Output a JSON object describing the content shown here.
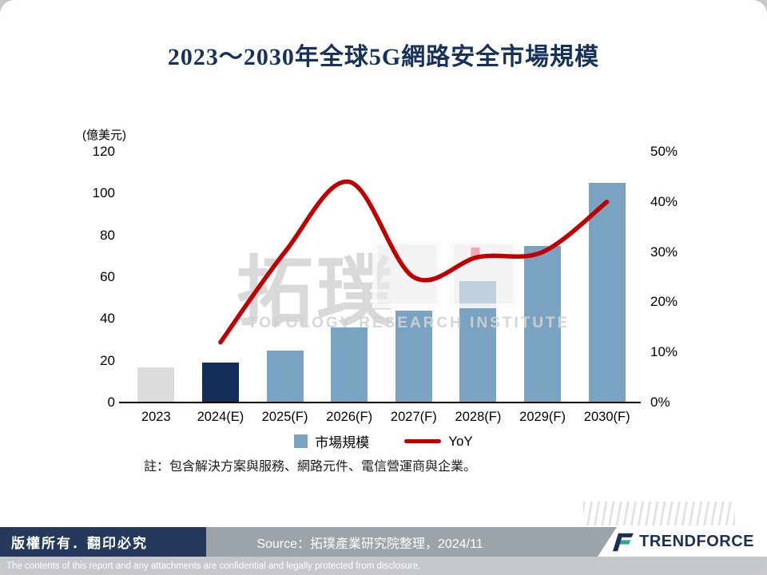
{
  "title": "2023～2030年全球5G網路安全市場規模",
  "chart_data": {
    "type": "bar",
    "subtype": "bar+line-combo",
    "unit_label": "(億美元)",
    "categories": [
      "2023",
      "2024(E)",
      "2025(F)",
      "2026(F)",
      "2027(F)",
      "2028(F)",
      "2029(F)",
      "2030(F)"
    ],
    "left_axis": {
      "min": 0,
      "max": 120,
      "step": 20,
      "ticks": [
        "0",
        "20",
        "40",
        "60",
        "80",
        "100",
        "120"
      ]
    },
    "right_axis": {
      "min": 0,
      "max": 50,
      "step": 10,
      "ticks": [
        "0%",
        "10%",
        "20%",
        "30%",
        "40%",
        "50%"
      ]
    },
    "series": [
      {
        "name": "市場規模",
        "type": "bar",
        "values": [
          17,
          19,
          25,
          36,
          44,
          58,
          75,
          105
        ],
        "bar_colors": [
          "#dcdcdc",
          "#122e58",
          "#7aa3c2",
          "#7aa3c2",
          "#7aa3c2",
          "#7aa3c2",
          "#7aa3c2",
          "#7aa3c2"
        ]
      },
      {
        "name": "YoY",
        "type": "line",
        "color": "#c00000",
        "values": [
          null,
          12,
          30,
          44,
          25,
          29,
          30,
          40
        ]
      }
    ],
    "marker": {
      "index": 5,
      "color": "#f4a7b9"
    },
    "legend": [
      {
        "label": "市場規模",
        "swatch": "#7aa3c2",
        "kind": "square"
      },
      {
        "label": "YoY",
        "swatch": "#c00000",
        "kind": "line"
      }
    ],
    "grid": false,
    "legend_position": "bottom"
  },
  "note": "註：包含解決方案與服務、網路元件、電信營運商與企業。",
  "watermark": {
    "cjk": "拓璞",
    "latin": "TOPOLOGY RESEARCH INSTITUTE"
  },
  "footer": {
    "copyright": "版權所有．翻印必究",
    "source": "Source：拓璞產業研究院整理，2024/11",
    "brand": "TRENDFORCE",
    "disclaimer": "The contents of this report and any attachments are confidential and legally protected from disclosure."
  }
}
